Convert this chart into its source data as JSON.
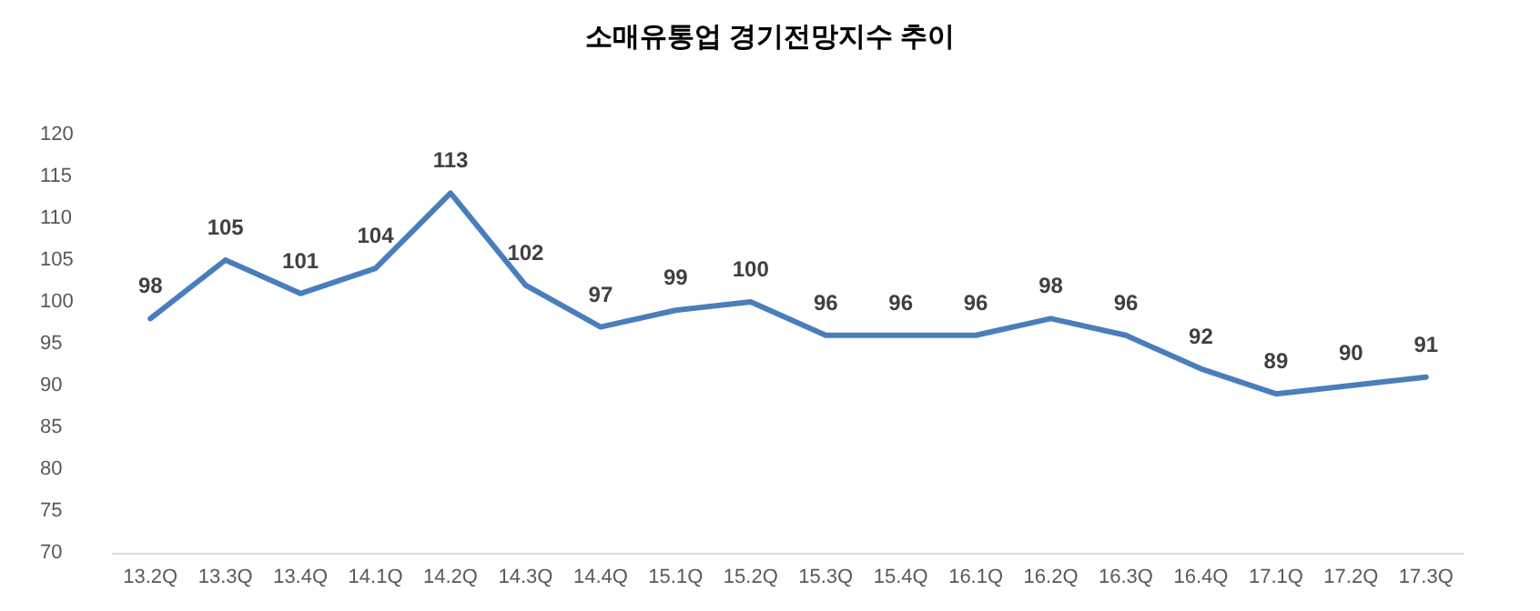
{
  "chart_data": {
    "type": "line",
    "title": "소매유통업 경기전망지수 추이",
    "categories": [
      "13.2Q",
      "13.3Q",
      "13.4Q",
      "14.1Q",
      "14.2Q",
      "14.3Q",
      "14.4Q",
      "15.1Q",
      "15.2Q",
      "15.3Q",
      "15.4Q",
      "16.1Q",
      "16.2Q",
      "16.3Q",
      "16.4Q",
      "17.1Q",
      "17.2Q",
      "17.3Q"
    ],
    "series": [
      {
        "color": "#4a7ebb",
        "values": [
          98,
          105,
          101,
          104,
          113,
          102,
          97,
          99,
          100,
          96,
          96,
          96,
          98,
          96,
          92,
          89,
          90,
          91
        ]
      }
    ],
    "ylim": [
      70,
      120
    ],
    "yticks": [
      70,
      75,
      80,
      85,
      90,
      95,
      100,
      105,
      110,
      115,
      120
    ],
    "marker": "none",
    "line_style": "solid",
    "data_labels": true
  }
}
